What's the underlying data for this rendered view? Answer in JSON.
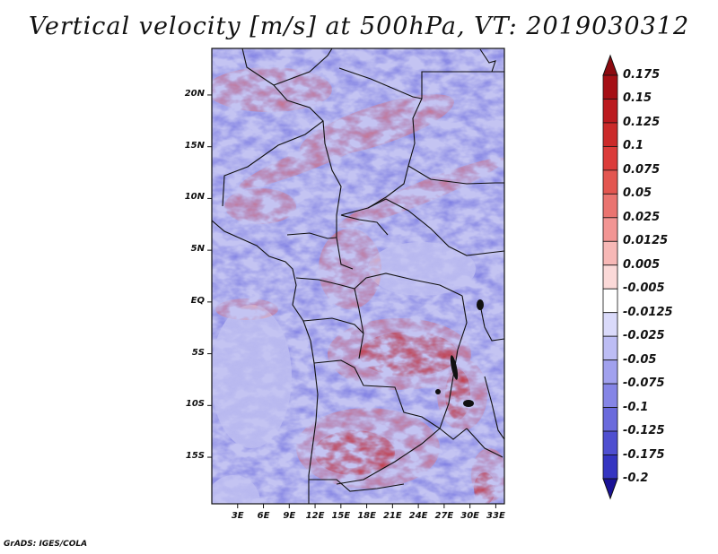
{
  "title": "Vertical velocity [m/s] at 500hPa, VT: 2019030312",
  "credit": "GrADS: IGES/COLA",
  "map": {
    "lat_range": [
      -19.5,
      24.5
    ],
    "lon_range": [
      0,
      34
    ],
    "lat_ticks": [
      {
        "value": 20,
        "label": "20N"
      },
      {
        "value": 15,
        "label": "15N"
      },
      {
        "value": 10,
        "label": "10N"
      },
      {
        "value": 5,
        "label": "5N"
      },
      {
        "value": 0,
        "label": "EQ"
      },
      {
        "value": -5,
        "label": "5S"
      },
      {
        "value": -10,
        "label": "10S"
      },
      {
        "value": -15,
        "label": "15S"
      }
    ],
    "lon_ticks": [
      {
        "value": 3,
        "label": "3E"
      },
      {
        "value": 6,
        "label": "6E"
      },
      {
        "value": 9,
        "label": "9E"
      },
      {
        "value": 12,
        "label": "12E"
      },
      {
        "value": 15,
        "label": "15E"
      },
      {
        "value": 18,
        "label": "18E"
      },
      {
        "value": 21,
        "label": "21E"
      },
      {
        "value": 24,
        "label": "24E"
      },
      {
        "value": 27,
        "label": "27E"
      },
      {
        "value": 30,
        "label": "30E"
      },
      {
        "value": 33,
        "label": "33E"
      }
    ]
  },
  "colorbar": {
    "levels": [
      {
        "label": "0.175",
        "color": "#a50f15"
      },
      {
        "label": "0.15",
        "color": "#bb1a1f"
      },
      {
        "label": "0.125",
        "color": "#cb2a2a"
      },
      {
        "label": "0.1",
        "color": "#db3c3a"
      },
      {
        "label": "0.075",
        "color": "#e35650"
      },
      {
        "label": "0.05",
        "color": "#ea7470"
      },
      {
        "label": "0.025",
        "color": "#f29593"
      },
      {
        "label": "0.0125",
        "color": "#f7b8b6"
      },
      {
        "label": "0.005",
        "color": "#fbd9d8"
      },
      {
        "label": "-0.005",
        "color": "#ffffff"
      },
      {
        "label": "-0.0125",
        "color": "#dadafa"
      },
      {
        "label": "-0.025",
        "color": "#bdbdf4"
      },
      {
        "label": "-0.05",
        "color": "#a1a1ee"
      },
      {
        "label": "-0.075",
        "color": "#8585e6"
      },
      {
        "label": "-0.1",
        "color": "#6a6adc"
      },
      {
        "label": "-0.125",
        "color": "#4f4fd0"
      },
      {
        "label": "-0.175",
        "color": "#3535c1"
      },
      {
        "label": "-0.2",
        "color": "#2222a8"
      }
    ],
    "overflow_top_color": "#8c0a10",
    "overflow_bottom_color": "#1a1296"
  }
}
